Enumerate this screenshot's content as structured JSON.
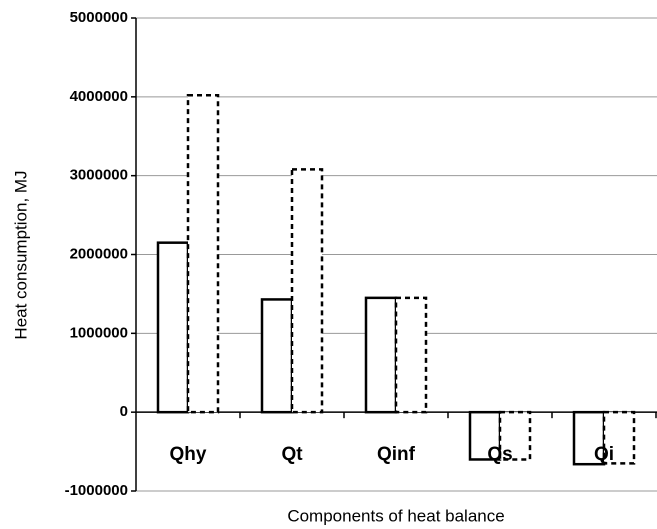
{
  "chart_data": {
    "type": "bar",
    "xlabel": "Components of heat balance",
    "ylabel": "Heat consumption, MJ",
    "categories": [
      "Qhy",
      "Qt",
      "Qinf",
      "Qs",
      "Qi"
    ],
    "series": [
      {
        "color": "#000000",
        "line_style": "solid",
        "values": [
          2150000,
          1430000,
          1450000,
          -600000,
          -660000
        ]
      },
      {
        "color": "#000000",
        "line_style": "dashed",
        "values": [
          4020000,
          3080000,
          1450000,
          -600000,
          -650000
        ]
      }
    ],
    "ylim": [
      -1000000,
      5000000
    ],
    "yticks": [
      -1000000,
      0,
      1000000,
      2000000,
      3000000,
      4000000,
      5000000
    ],
    "grid": true
  }
}
